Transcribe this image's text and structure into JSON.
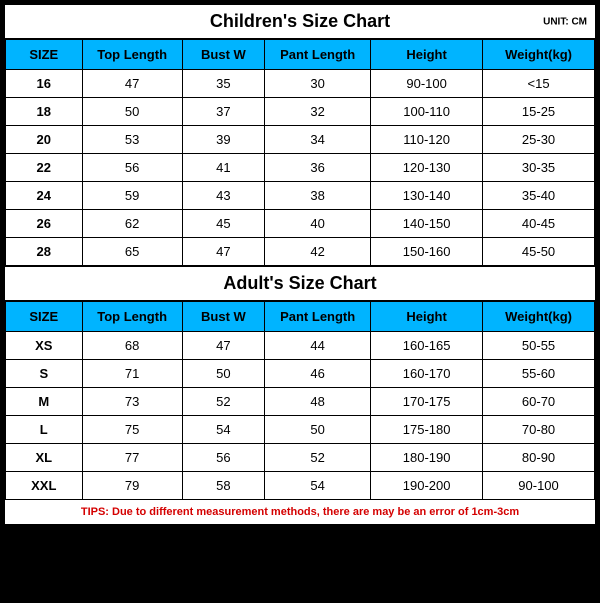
{
  "children": {
    "title": "Children's Size Chart",
    "unit": "UNIT: CM",
    "headers": [
      "SIZE",
      "Top Length",
      "Bust W",
      "Pant Length",
      "Height",
      "Weight(kg)"
    ],
    "rows": [
      [
        "16",
        "47",
        "35",
        "30",
        "90-100",
        "<15"
      ],
      [
        "18",
        "50",
        "37",
        "32",
        "100-110",
        "15-25"
      ],
      [
        "20",
        "53",
        "39",
        "34",
        "110-120",
        "25-30"
      ],
      [
        "22",
        "56",
        "41",
        "36",
        "120-130",
        "30-35"
      ],
      [
        "24",
        "59",
        "43",
        "38",
        "130-140",
        "35-40"
      ],
      [
        "26",
        "62",
        "45",
        "40",
        "140-150",
        "40-45"
      ],
      [
        "28",
        "65",
        "47",
        "42",
        "150-160",
        "45-50"
      ]
    ]
  },
  "adult": {
    "title": "Adult's Size Chart",
    "headers": [
      "SIZE",
      "Top Length",
      "Bust W",
      "Pant Length",
      "Height",
      "Weight(kg)"
    ],
    "rows": [
      [
        "XS",
        "68",
        "47",
        "44",
        "160-165",
        "50-55"
      ],
      [
        "S",
        "71",
        "50",
        "46",
        "160-170",
        "55-60"
      ],
      [
        "M",
        "73",
        "52",
        "48",
        "170-175",
        "60-70"
      ],
      [
        "L",
        "75",
        "54",
        "50",
        "175-180",
        "70-80"
      ],
      [
        "XL",
        "77",
        "56",
        "52",
        "180-190",
        "80-90"
      ],
      [
        "XXL",
        "79",
        "58",
        "54",
        "190-200",
        "90-100"
      ]
    ]
  },
  "tips": "TIPS: Due to different measurement methods, there are may be an error of 1cm-3cm",
  "style": {
    "header_bg": "#00b4ff",
    "tips_color": "#d40000"
  }
}
